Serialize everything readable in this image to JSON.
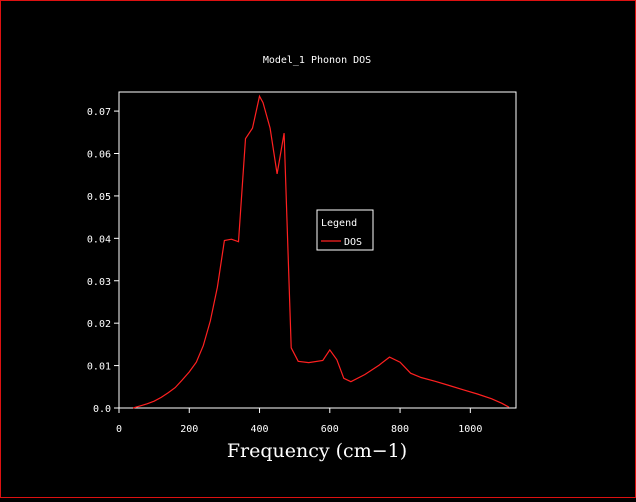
{
  "chart_data": {
    "type": "line",
    "title": "Model_1 Phonon DOS",
    "xlabel": "Frequency (cm−1)",
    "ylabel": "",
    "xlim": [
      0,
      1130
    ],
    "ylim": [
      0,
      0.0745
    ],
    "xticks": [
      0,
      200,
      400,
      600,
      800,
      1000
    ],
    "xtick_labels": [
      "0",
      "200",
      "400",
      "600",
      "800",
      "1000"
    ],
    "yticks": [
      0,
      0.01,
      0.02,
      0.03,
      0.04,
      0.05,
      0.06,
      0.07
    ],
    "ytick_labels": [
      "0.0",
      "0.01",
      "0.02",
      "0.03",
      "0.04",
      "0.05",
      "0.06",
      "0.07"
    ],
    "grid": false,
    "legend": {
      "title": "Legend",
      "placement": "center-right"
    },
    "series": [
      {
        "name": "DOS",
        "color": "#ff2020",
        "x": [
          40,
          60,
          80,
          100,
          120,
          140,
          160,
          180,
          200,
          220,
          240,
          260,
          280,
          300,
          320,
          340,
          360,
          380,
          400,
          410,
          430,
          450,
          470,
          490,
          510,
          540,
          580,
          600,
          620,
          640,
          660,
          700,
          740,
          770,
          800,
          830,
          860,
          900,
          940,
          980,
          1020,
          1060,
          1090,
          1110
        ],
        "y": [
          0.0,
          0.0005,
          0.001,
          0.0016,
          0.0025,
          0.0036,
          0.0048,
          0.0066,
          0.0085,
          0.0108,
          0.0147,
          0.0205,
          0.0285,
          0.0395,
          0.0398,
          0.0392,
          0.0635,
          0.066,
          0.0735,
          0.072,
          0.066,
          0.0552,
          0.0648,
          0.0142,
          0.011,
          0.0107,
          0.0112,
          0.0137,
          0.0114,
          0.007,
          0.0062,
          0.0079,
          0.0101,
          0.012,
          0.0108,
          0.0082,
          0.0072,
          0.0063,
          0.0053,
          0.0043,
          0.0033,
          0.0022,
          0.0011,
          0.0002
        ]
      }
    ]
  }
}
